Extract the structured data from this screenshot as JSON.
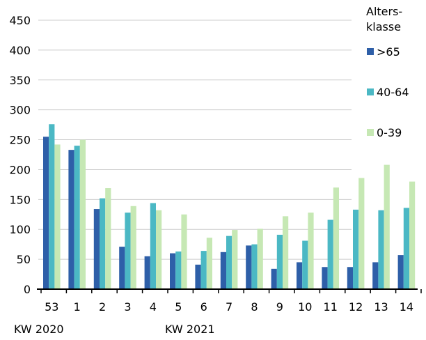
{
  "chart_data": {
    "type": "bar",
    "categories": [
      "53",
      "1",
      "2",
      "3",
      "4",
      "5",
      "6",
      "7",
      "8",
      "9",
      "10",
      "11",
      "12",
      "13",
      "14"
    ],
    "series": [
      {
        "name": ">65",
        "color": "#2e5fa8",
        "values": [
          255,
          233,
          134,
          71,
          55,
          60,
          41,
          62,
          73,
          34,
          45,
          37,
          37,
          45,
          57
        ]
      },
      {
        "name": "40-64",
        "color": "#4bb8c4",
        "values": [
          276,
          240,
          152,
          128,
          144,
          63,
          64,
          89,
          75,
          91,
          81,
          116,
          133,
          132,
          136
        ]
      },
      {
        "name": "0-39",
        "color": "#c6e8b4",
        "values": [
          242,
          250,
          169,
          139,
          132,
          125,
          86,
          99,
          101,
          122,
          128,
          170,
          186,
          208,
          180
        ]
      }
    ],
    "ylim": [
      0,
      450
    ],
    "yticks": [
      "0",
      "50",
      "100",
      "150",
      "200",
      "250",
      "300",
      "350",
      "400",
      "450"
    ],
    "grid": true,
    "legend": {
      "title_line1": "Alters-",
      "title_line2": "klasse",
      "placement": "right"
    },
    "period_labels": [
      "KW 2020",
      "KW 2021"
    ]
  }
}
